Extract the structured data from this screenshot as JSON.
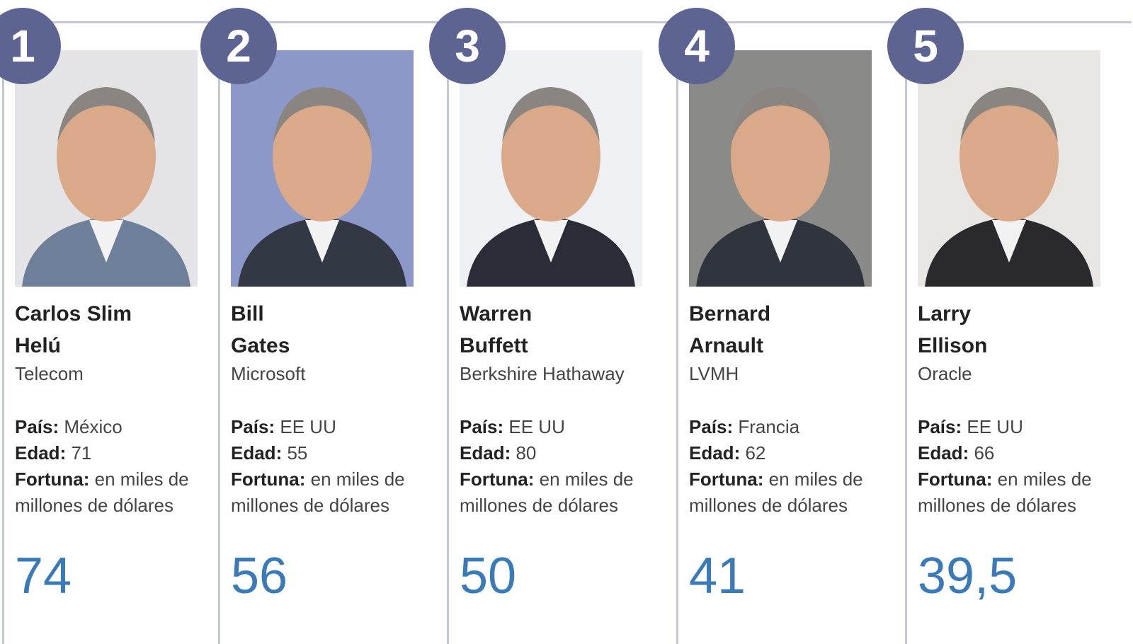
{
  "cards": [
    {
      "rank": "1",
      "name": [
        "Carlos Slim",
        "Helú"
      ],
      "company": "Telecom",
      "country_label": "País:",
      "country": "México",
      "age_label": "Edad:",
      "age": "71",
      "fortune_label": "Fortuna:",
      "fortune_note": "en miles de millones de dólares",
      "fortune": "74"
    },
    {
      "rank": "2",
      "name": [
        "Bill",
        "Gates"
      ],
      "company": "Microsoft",
      "country_label": "País:",
      "country": "EE UU",
      "age_label": "Edad:",
      "age": "55",
      "fortune_label": "Fortuna:",
      "fortune_note": "en miles de millones de dólares",
      "fortune": "56"
    },
    {
      "rank": "3",
      "name": [
        "Warren",
        "Buffett"
      ],
      "company": "Berkshire Hathaway",
      "country_label": "País:",
      "country": "EE UU",
      "age_label": "Edad:",
      "age": "80",
      "fortune_label": "Fortuna:",
      "fortune_note": "en miles de millones de dólares",
      "fortune": "50"
    },
    {
      "rank": "4",
      "name": [
        "Bernard",
        "Arnault"
      ],
      "company": "LVMH",
      "country_label": "País:",
      "country": "Francia",
      "age_label": "Edad:",
      "age": "62",
      "fortune_label": "Fortuna:",
      "fortune_note": "en miles de millones de dólares",
      "fortune": "41"
    },
    {
      "rank": "5",
      "name": [
        "Larry",
        "Ellison"
      ],
      "company": "Oracle",
      "country_label": "País:",
      "country": "EE UU",
      "age_label": "Edad:",
      "age": "66",
      "fortune_label": "Fortuna:",
      "fortune_note": "en miles de millones de dólares",
      "fortune": "39,5"
    }
  ]
}
